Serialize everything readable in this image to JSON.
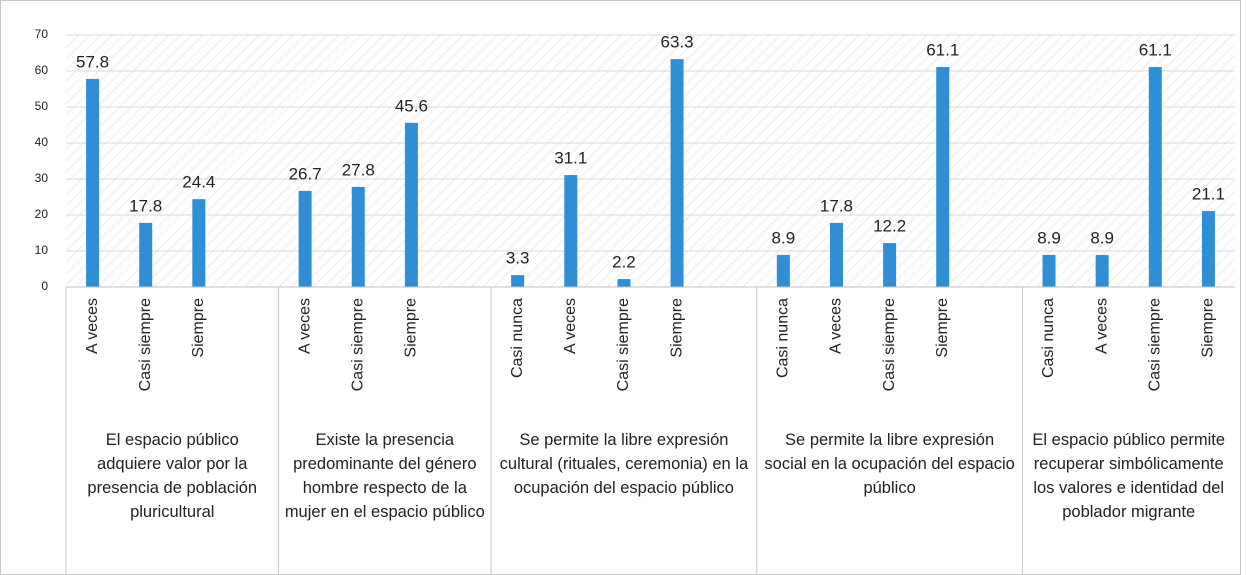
{
  "chart_data": {
    "type": "bar",
    "color": "#2e8fd6",
    "ylim": [
      0,
      70
    ],
    "yticks": [
      0,
      10,
      20,
      30,
      40,
      50,
      60,
      70
    ],
    "grid": true,
    "groups": [
      {
        "label": "El espacio público adquiere valor por la presencia de población pluricultural",
        "categories": [
          "A veces",
          "Casi siempre",
          "Siempre",
          null
        ],
        "values": [
          57.8,
          17.8,
          24.4,
          null
        ]
      },
      {
        "label": "Existe la presencia predominante del género hombre respecto de la mujer en el espacio público",
        "categories": [
          "A veces",
          "Casi siempre",
          "Siempre",
          null
        ],
        "values": [
          26.7,
          27.8,
          45.6,
          null
        ]
      },
      {
        "label": "Se permite la libre expresión cultural (rituales, ceremonia) en la ocupación del espacio público",
        "categories": [
          "Casi nunca",
          "A veces",
          "Casi siempre",
          "Siempre",
          null
        ],
        "values": [
          3.3,
          31.1,
          2.2,
          63.3,
          null
        ]
      },
      {
        "label": "Se permite la libre expresión social en la ocupación del espacio público",
        "categories": [
          "Casi nunca",
          "A veces",
          "Casi siempre",
          "Siempre",
          null
        ],
        "values": [
          8.9,
          17.8,
          12.2,
          61.1,
          null
        ]
      },
      {
        "label": "El espacio público permite recuperar simbólicamente los valores e identidad del poblador migrante",
        "categories": [
          "Casi nunca",
          "A veces",
          "Casi siempre",
          "Siempre"
        ],
        "values": [
          8.9,
          8.9,
          61.1,
          21.1
        ]
      }
    ]
  }
}
